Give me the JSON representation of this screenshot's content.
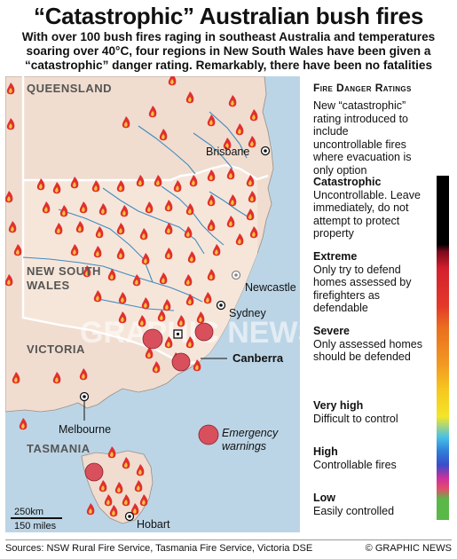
{
  "title": "“Catastrophic” Australian bush fires",
  "subtitle": "With over 100 bush fires raging in southeast Australia and temperatures soaring over 40°C, four regions in New South Wales have been given a “catastrophic” danger rating. Remarkably, there have been no fatalities",
  "map": {
    "regions": {
      "queensland": "QUEENSLAND",
      "new_south_wales_1": "NEW SOUTH",
      "new_south_wales_2": "WALES",
      "victoria": "VICTORIA",
      "tasmania": "TASMANIA"
    },
    "cities": {
      "brisbane": "Brisbane",
      "newcastle": "Newcastle",
      "sydney": "Sydney",
      "canberra": "Canberra",
      "melbourne": "Melbourne",
      "hobart": "Hobart"
    },
    "legend_emergency_1": "Emergency",
    "legend_emergency_2": "warnings",
    "scale_km": "250km",
    "scale_miles": "150 miles",
    "watermark": "GRAPHIC NEWS",
    "colors": {
      "sea": "#bcd5e6",
      "land": "#f0ddd0",
      "nsw": "#f6e6da",
      "river": "#3f8bc0",
      "fire": "#e0302e",
      "fire_inner": "#f7c23a",
      "emergency": "#d8505c"
    }
  },
  "sidebar": {
    "title": "Fire Danger Ratings",
    "note": "New “catastrophic” rating introduced to include uncontrollable fires where evacuation is only option",
    "ratings": [
      {
        "name": "Catastrophic",
        "desc": "Uncontrollable. Leave immediately, do not attempt to protect property"
      },
      {
        "name": "Extreme",
        "desc": "Only try to defend homes assessed by firefighters as defendable"
      },
      {
        "name": "Severe",
        "desc": "Only assessed homes should be defended"
      },
      {
        "name": "Very high",
        "desc": "Difficult to control"
      },
      {
        "name": "High",
        "desc": "Controllable fires"
      },
      {
        "name": "Low",
        "desc": "Easily controlled"
      }
    ]
  },
  "footer": {
    "sources": "Sources: NSW Rural Fire Service, Tasmania Fire Service, Victoria DSE",
    "credit": "© GRAPHIC NEWS"
  }
}
